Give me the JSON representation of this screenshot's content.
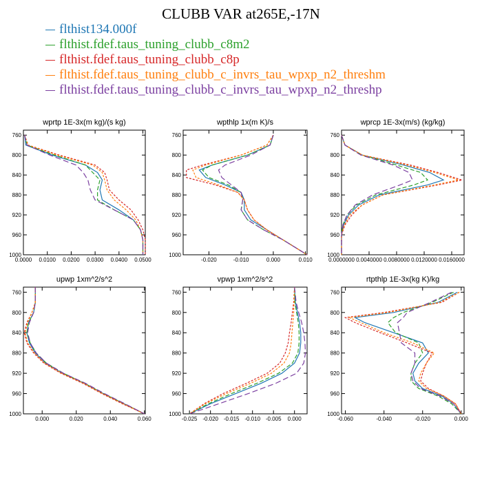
{
  "title": "CLUBB VAR at265E,-17N",
  "legend": [
    {
      "label": "flthist134.000f",
      "color": "#1f77b4"
    },
    {
      "label": "flthist.fdef.taus_tuning_clubb_c8m2",
      "color": "#2ca02c"
    },
    {
      "label": "flthist.fdef.taus_tuning_clubb_c8p",
      "color": "#d62728"
    },
    {
      "label": "flthist.fdef.taus_tuning_clubb_c_invrs_tau_wpxp_n2_threshm",
      "color": "#ff7f0e"
    },
    {
      "label": "flthist.fdef.taus_tuning_clubb_c_invrs_tau_wpxp_n2_threshp",
      "color": "#7b3fa0"
    }
  ],
  "chart_data": [
    {
      "type": "line",
      "title": "wprtp  1E-3x(m kg)/(s kg)",
      "xlim": [
        0.0,
        0.051
      ],
      "ylim": [
        1000,
        750
      ],
      "xticks": [
        0.0,
        0.01,
        0.02,
        0.03,
        0.04,
        0.05
      ],
      "xtick_labels": [
        "0.0000",
        "0.0100",
        "0.0200",
        "0.0300",
        "0.0400",
        "0.0500"
      ],
      "yticks": [
        760,
        800,
        840,
        880,
        920,
        960,
        1000
      ],
      "ytick_labels": [
        "760",
        "800",
        "840",
        "880",
        "920",
        "960",
        "1000"
      ],
      "y": [
        760,
        780,
        800,
        820,
        835,
        850,
        870,
        890,
        910,
        930,
        950,
        970,
        1000
      ],
      "series": [
        {
          "values": [
            0.0005,
            0.001,
            0.012,
            0.026,
            0.031,
            0.033,
            0.032,
            0.033,
            0.04,
            0.046,
            0.049,
            0.05,
            0.05
          ]
        },
        {
          "values": [
            0.0005,
            0.0015,
            0.013,
            0.026,
            0.029,
            0.032,
            0.031,
            0.031,
            0.038,
            0.046,
            0.049,
            0.05,
            0.05
          ]
        },
        {
          "values": [
            0.0005,
            0.002,
            0.015,
            0.03,
            0.034,
            0.035,
            0.036,
            0.04,
            0.045,
            0.048,
            0.05,
            0.051,
            0.051
          ]
        },
        {
          "values": [
            0.0005,
            0.002,
            0.014,
            0.029,
            0.033,
            0.034,
            0.035,
            0.038,
            0.043,
            0.047,
            0.049,
            0.05,
            0.05
          ]
        },
        {
          "values": [
            0.0005,
            0.0015,
            0.011,
            0.022,
            0.025,
            0.027,
            0.028,
            0.03,
            0.038,
            0.046,
            0.049,
            0.05,
            0.05
          ]
        }
      ]
    },
    {
      "type": "line",
      "title": "wpthlp  1x(m K)/s",
      "xlim": [
        -0.028,
        0.0105
      ],
      "ylim": [
        1000,
        750
      ],
      "xticks": [
        -0.02,
        -0.01,
        0.0,
        0.01
      ],
      "xtick_labels": [
        "-0.020",
        "-0.010",
        "0.000",
        "0.010"
      ],
      "yticks": [
        760,
        800,
        840,
        880,
        920,
        960,
        1000
      ],
      "ytick_labels": [
        "760",
        "800",
        "840",
        "880",
        "920",
        "960",
        "1000"
      ],
      "y": [
        760,
        780,
        800,
        820,
        830,
        845,
        860,
        875,
        890,
        910,
        930,
        950,
        970,
        1000
      ],
      "series": [
        {
          "values": [
            0.0,
            -0.001,
            -0.008,
            -0.019,
            -0.023,
            -0.021,
            -0.015,
            -0.01,
            -0.009,
            -0.009,
            -0.007,
            -0.002,
            0.003,
            0.0105
          ]
        },
        {
          "values": [
            0.0,
            -0.001,
            -0.008,
            -0.019,
            -0.022,
            -0.02,
            -0.014,
            -0.01,
            -0.0095,
            -0.01,
            -0.008,
            -0.003,
            0.003,
            0.0105
          ]
        },
        {
          "values": [
            0.0,
            -0.002,
            -0.01,
            -0.022,
            -0.027,
            -0.027,
            -0.018,
            -0.011,
            -0.009,
            -0.008,
            -0.006,
            -0.002,
            0.003,
            0.0105
          ]
        },
        {
          "values": [
            0.0,
            -0.002,
            -0.01,
            -0.021,
            -0.025,
            -0.024,
            -0.017,
            -0.011,
            -0.009,
            -0.008,
            -0.006,
            -0.002,
            0.003,
            0.0105
          ]
        },
        {
          "values": [
            0.0,
            -0.001,
            -0.007,
            -0.015,
            -0.017,
            -0.016,
            -0.013,
            -0.01,
            -0.0095,
            -0.01,
            -0.008,
            -0.003,
            0.003,
            0.0105
          ]
        }
      ]
    },
    {
      "type": "line",
      "title": "wprcp  1E-3x(m/s) (kg/kg)",
      "xlim": [
        0.0,
        0.0178
      ],
      "ylim": [
        1000,
        750
      ],
      "xticks": [
        0.0,
        0.004,
        0.008,
        0.012,
        0.016
      ],
      "xtick_labels": [
        "0.0000000",
        "0.0040000",
        "0.0080000",
        "0.0120000",
        "0.0160000"
      ],
      "yticks": [
        760,
        800,
        840,
        880,
        920,
        960,
        1000
      ],
      "ytick_labels": [
        "760",
        "800",
        "840",
        "880",
        "920",
        "960",
        "1000"
      ],
      "y": [
        760,
        780,
        800,
        820,
        835,
        850,
        860,
        880,
        900,
        920,
        940,
        960,
        1000
      ],
      "series": [
        {
          "values": [
            0.0,
            0.0005,
            0.003,
            0.009,
            0.0128,
            0.0148,
            0.0125,
            0.0055,
            0.0025,
            0.001,
            0.0003,
            0.0,
            0.0
          ]
        },
        {
          "values": [
            0.0,
            0.0005,
            0.003,
            0.008,
            0.0115,
            0.0125,
            0.0105,
            0.005,
            0.0022,
            0.0008,
            0.0002,
            0.0,
            0.0
          ]
        },
        {
          "values": [
            0.0,
            0.0005,
            0.003,
            0.01,
            0.014,
            0.0175,
            0.014,
            0.006,
            0.003,
            0.0015,
            0.0005,
            0.0,
            0.0
          ]
        },
        {
          "values": [
            0.0,
            0.0005,
            0.003,
            0.0095,
            0.0135,
            0.017,
            0.0135,
            0.006,
            0.003,
            0.0012,
            0.0004,
            0.0,
            0.0
          ]
        },
        {
          "values": [
            0.0,
            0.0005,
            0.0028,
            0.0075,
            0.0098,
            0.0103,
            0.0085,
            0.0045,
            0.002,
            0.0008,
            0.0002,
            0.0,
            0.0
          ]
        }
      ]
    },
    {
      "type": "line",
      "title": "upwp  1xm^2/s^2",
      "xlim": [
        -0.011,
        0.0605
      ],
      "ylim": [
        1000,
        750
      ],
      "xticks": [
        0.0,
        0.02,
        0.04,
        0.06
      ],
      "xtick_labels": [
        "0.000",
        "0.020",
        "0.040",
        "0.060"
      ],
      "yticks": [
        760,
        800,
        840,
        880,
        920,
        960,
        1000
      ],
      "ytick_labels": [
        "760",
        "800",
        "840",
        "880",
        "920",
        "960",
        "1000"
      ],
      "y": [
        750,
        780,
        800,
        820,
        840,
        860,
        880,
        900,
        920,
        940,
        960,
        980,
        1000
      ],
      "series": [
        {
          "values": [
            -0.004,
            -0.004,
            -0.005,
            -0.008,
            -0.009,
            -0.0075,
            -0.004,
            0.002,
            0.012,
            0.025,
            0.036,
            0.048,
            0.06
          ]
        },
        {
          "values": [
            -0.004,
            -0.004,
            -0.005,
            -0.008,
            -0.009,
            -0.007,
            -0.0035,
            0.0025,
            0.0125,
            0.025,
            0.036,
            0.048,
            0.06
          ]
        },
        {
          "values": [
            -0.004,
            -0.004,
            -0.006,
            -0.009,
            -0.0105,
            -0.009,
            -0.005,
            0.001,
            0.011,
            0.024,
            0.035,
            0.047,
            0.06
          ]
        },
        {
          "values": [
            -0.004,
            -0.004,
            -0.006,
            -0.0085,
            -0.01,
            -0.0085,
            -0.0045,
            0.0015,
            0.0115,
            0.0245,
            0.0355,
            0.0475,
            0.06
          ]
        },
        {
          "values": [
            -0.004,
            -0.004,
            -0.005,
            -0.0075,
            -0.0085,
            -0.007,
            -0.0035,
            0.0025,
            0.0125,
            0.0255,
            0.0365,
            0.0485,
            0.06
          ]
        }
      ]
    },
    {
      "type": "line",
      "title": "vpwp  1xm^2/s^2",
      "xlim": [
        -0.0265,
        0.003
      ],
      "ylim": [
        1000,
        750
      ],
      "xticks": [
        -0.025,
        -0.02,
        -0.015,
        -0.01,
        -0.005,
        0.0
      ],
      "xtick_labels": [
        "-0.025",
        "-0.020",
        "-0.015",
        "-0.010",
        "-0.005",
        "0.000"
      ],
      "yticks": [
        760,
        800,
        840,
        880,
        920,
        960,
        1000
      ],
      "ytick_labels": [
        "760",
        "800",
        "840",
        "880",
        "920",
        "960",
        "1000"
      ],
      "y": [
        750,
        780,
        800,
        820,
        840,
        860,
        880,
        900,
        920,
        940,
        960,
        980,
        1000
      ],
      "series": [
        {
          "values": [
            0.0,
            0.0002,
            0.0007,
            0.0012,
            0.0015,
            0.0015,
            0.0012,
            0.0,
            -0.003,
            -0.008,
            -0.014,
            -0.02,
            -0.025
          ]
        },
        {
          "values": [
            0.0,
            0.0001,
            0.0005,
            0.0009,
            0.0011,
            0.0011,
            0.0008,
            -0.0005,
            -0.0038,
            -0.009,
            -0.015,
            -0.0205,
            -0.025
          ]
        },
        {
          "values": [
            0.0,
            -0.0002,
            -0.0005,
            -0.0008,
            -0.0012,
            -0.0015,
            -0.0022,
            -0.0035,
            -0.0065,
            -0.0115,
            -0.017,
            -0.0215,
            -0.025
          ]
        },
        {
          "values": [
            0.0,
            -0.0001,
            -0.0002,
            -0.0004,
            -0.0006,
            -0.0008,
            -0.0012,
            -0.0025,
            -0.0055,
            -0.0105,
            -0.0162,
            -0.0212,
            -0.025
          ]
        },
        {
          "values": [
            0.0,
            0.0004,
            0.001,
            0.0017,
            0.0022,
            0.0025,
            0.0026,
            0.0022,
            0.0005,
            -0.0045,
            -0.011,
            -0.018,
            -0.025
          ]
        }
      ]
    },
    {
      "type": "line",
      "title": "rtpthlp  1E-3x(kg K)/kg",
      "xlim": [
        -0.062,
        0.0015
      ],
      "ylim": [
        1000,
        750
      ],
      "xticks": [
        -0.06,
        -0.04,
        -0.02,
        0.0
      ],
      "xtick_labels": [
        "-0.060",
        "-0.040",
        "-0.020",
        "0.000"
      ],
      "yticks": [
        760,
        800,
        840,
        880,
        920,
        960,
        1000
      ],
      "ytick_labels": [
        "760",
        "800",
        "840",
        "880",
        "920",
        "960",
        "1000"
      ],
      "y": [
        760,
        780,
        800,
        810,
        820,
        840,
        860,
        880,
        900,
        920,
        935,
        950,
        965,
        980,
        1000
      ],
      "series": [
        {
          "values": [
            -0.002,
            -0.012,
            -0.035,
            -0.055,
            -0.05,
            -0.035,
            -0.02,
            -0.017,
            -0.022,
            -0.025,
            -0.024,
            -0.02,
            -0.01,
            -0.004,
            0.0
          ]
        },
        {
          "values": [
            -0.004,
            -0.015,
            -0.03,
            -0.035,
            -0.038,
            -0.034,
            -0.022,
            -0.02,
            -0.024,
            -0.026,
            -0.026,
            -0.022,
            -0.012,
            -0.005,
            0.0
          ]
        },
        {
          "values": [
            -0.001,
            -0.01,
            -0.04,
            -0.06,
            -0.055,
            -0.042,
            -0.028,
            -0.015,
            -0.018,
            -0.02,
            -0.021,
            -0.017,
            -0.009,
            -0.003,
            0.0
          ]
        },
        {
          "values": [
            -0.001,
            -0.011,
            -0.038,
            -0.058,
            -0.052,
            -0.04,
            -0.025,
            -0.014,
            -0.018,
            -0.021,
            -0.022,
            -0.018,
            -0.009,
            -0.003,
            0.0
          ]
        },
        {
          "values": [
            -0.005,
            -0.016,
            -0.028,
            -0.03,
            -0.033,
            -0.032,
            -0.031,
            -0.024,
            -0.024,
            -0.026,
            -0.025,
            -0.021,
            -0.011,
            -0.004,
            0.0
          ]
        }
      ]
    }
  ]
}
